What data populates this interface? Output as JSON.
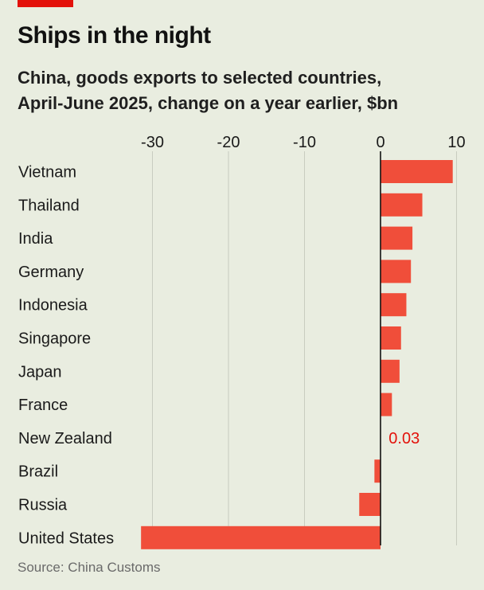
{
  "header": {
    "title": "Ships in the night",
    "subtitle_line1": "China, goods exports to selected countries,",
    "subtitle_line2": "April-June 2025, change on a year earlier, $bn"
  },
  "footer": {
    "source": "Source: China Customs"
  },
  "colors": {
    "bar": "#f04e3a",
    "label_highlight": "#e3120b",
    "background": "#e9ede0",
    "gridline": "#c8ccc0",
    "zero_line": "#111111",
    "accent_tag": "#e3120b"
  },
  "chart_data": {
    "type": "bar",
    "orientation": "horizontal",
    "title": "Ships in the night",
    "subtitle": "China, goods exports to selected countries, April-June 2025, change on a year earlier, $bn",
    "categories": [
      "Vietnam",
      "Thailand",
      "India",
      "Germany",
      "Indonesia",
      "Singapore",
      "Japan",
      "France",
      "New Zealand",
      "Brazil",
      "Russia",
      "United States"
    ],
    "values": [
      9.5,
      5.5,
      4.2,
      4.0,
      3.4,
      2.7,
      2.5,
      1.5,
      0.03,
      -0.8,
      -2.8,
      -31.5
    ],
    "data_labels": {
      "New Zealand": "0.03"
    },
    "xlim": [
      -32,
      10
    ],
    "xticks": [
      -30,
      -20,
      -10,
      0,
      10
    ],
    "xtick_labels": [
      "-30",
      "-20",
      "-10",
      "0",
      "10"
    ],
    "grid": true,
    "source": "Source: China Customs"
  }
}
